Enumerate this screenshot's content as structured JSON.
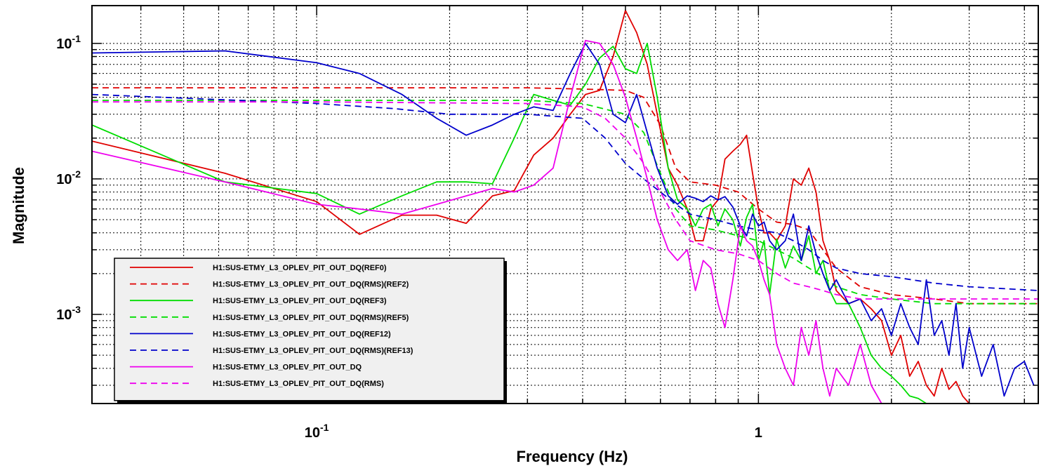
{
  "chart_data": {
    "type": "line",
    "xlabel": "Frequency (Hz)",
    "ylabel": "Magnitude",
    "x_scale": "log",
    "y_scale": "log",
    "xlim": [
      0.031,
      4.3
    ],
    "ylim": [
      0.00022,
      0.19
    ],
    "grid": true,
    "legend_position": "bottom-left",
    "x_ticks": [
      {
        "value": 0.1,
        "base": "10",
        "exp": "-1"
      },
      {
        "value": 1,
        "base": "1",
        "exp": ""
      }
    ],
    "y_ticks": [
      {
        "value": 0.1,
        "base": "10",
        "exp": "-1"
      },
      {
        "value": 0.01,
        "base": "10",
        "exp": "-2"
      },
      {
        "value": 0.001,
        "base": "10",
        "exp": "-3"
      }
    ],
    "series": [
      {
        "name": "H1:SUS-ETMY_L3_OPLEV_PIT_OUT_DQ(REF0)",
        "color": "#e00000",
        "dash": "solid",
        "x": [
          0.031,
          0.062,
          0.1,
          0.125,
          0.156,
          0.187,
          0.218,
          0.25,
          0.28,
          0.31,
          0.343,
          0.375,
          0.406,
          0.437,
          0.469,
          0.5,
          0.53,
          0.56,
          0.59,
          0.625,
          0.656,
          0.69,
          0.72,
          0.75,
          0.78,
          0.81,
          0.84,
          0.875,
          0.91,
          0.94,
          0.97,
          1.0,
          1.03,
          1.06,
          1.1,
          1.15,
          1.2,
          1.25,
          1.3,
          1.35,
          1.4,
          1.45,
          1.5,
          1.6,
          1.7,
          1.8,
          1.9,
          2.0,
          2.1,
          2.2,
          2.3,
          2.4,
          2.5,
          2.6,
          2.7,
          2.8,
          2.9,
          3.0
        ],
        "y": [
          0.019,
          0.011,
          0.0068,
          0.0039,
          0.0054,
          0.0054,
          0.0047,
          0.0075,
          0.0082,
          0.015,
          0.02,
          0.03,
          0.042,
          0.045,
          0.08,
          0.175,
          0.12,
          0.07,
          0.03,
          0.012,
          0.009,
          0.006,
          0.0035,
          0.0035,
          0.006,
          0.007,
          0.014,
          0.016,
          0.018,
          0.021,
          0.011,
          0.006,
          0.004,
          0.004,
          0.0035,
          0.0045,
          0.01,
          0.009,
          0.012,
          0.008,
          0.0035,
          0.0025,
          0.0015,
          0.0012,
          0.0013,
          0.0011,
          0.0009,
          0.0005,
          0.0007,
          0.00035,
          0.00045,
          0.0003,
          0.00025,
          0.0004,
          0.00028,
          0.00032,
          0.00025,
          0.00022
        ]
      },
      {
        "name": "H1:SUS-ETMY_L3_OPLEV_PIT_OUT_DQ(RMS)(REF2)",
        "color": "#e00000",
        "dash": "dashed",
        "x": [
          0.031,
          0.1,
          0.3,
          0.4,
          0.5,
          0.55,
          0.6,
          0.65,
          0.7,
          0.8,
          0.9,
          1.0,
          1.1,
          1.2,
          1.3,
          1.4,
          1.5,
          1.7,
          2.0,
          2.5,
          3.0,
          4.3
        ],
        "y": [
          0.047,
          0.047,
          0.047,
          0.046,
          0.045,
          0.04,
          0.025,
          0.012,
          0.0095,
          0.009,
          0.008,
          0.006,
          0.0048,
          0.0046,
          0.0042,
          0.003,
          0.0022,
          0.0016,
          0.0014,
          0.0013,
          0.0012,
          0.0012
        ]
      },
      {
        "name": "H1:SUS-ETMY_L3_OPLEV_PIT_OUT_DQ(REF3)",
        "color": "#00dd00",
        "dash": "solid",
        "x": [
          0.031,
          0.062,
          0.1,
          0.125,
          0.156,
          0.187,
          0.218,
          0.25,
          0.28,
          0.31,
          0.343,
          0.375,
          0.406,
          0.437,
          0.469,
          0.5,
          0.53,
          0.56,
          0.59,
          0.625,
          0.656,
          0.69,
          0.72,
          0.75,
          0.78,
          0.81,
          0.84,
          0.875,
          0.91,
          0.94,
          0.97,
          1.0,
          1.03,
          1.06,
          1.1,
          1.15,
          1.2,
          1.25,
          1.3,
          1.35,
          1.4,
          1.45,
          1.5,
          1.6,
          1.7,
          1.8,
          1.9,
          2.0,
          2.1,
          2.2,
          2.3,
          2.4,
          2.5,
          2.6
        ],
        "y": [
          0.025,
          0.0095,
          0.0078,
          0.0055,
          0.0075,
          0.0095,
          0.0095,
          0.0092,
          0.02,
          0.042,
          0.038,
          0.035,
          0.05,
          0.078,
          0.095,
          0.065,
          0.06,
          0.1,
          0.04,
          0.012,
          0.007,
          0.006,
          0.0045,
          0.006,
          0.0065,
          0.0045,
          0.006,
          0.005,
          0.0032,
          0.0052,
          0.0065,
          0.0025,
          0.0035,
          0.0014,
          0.0036,
          0.0022,
          0.0032,
          0.0025,
          0.0038,
          0.002,
          0.0025,
          0.0015,
          0.0012,
          0.0012,
          0.0008,
          0.0005,
          0.0004,
          0.00035,
          0.0003,
          0.00025,
          0.00024,
          0.00022,
          0.00022,
          0.00022
        ]
      },
      {
        "name": "H1:SUS-ETMY_L3_OPLEV_PIT_OUT_DQ(RMS)(REF5)",
        "color": "#00dd00",
        "dash": "dashed",
        "x": [
          0.031,
          0.1,
          0.3,
          0.4,
          0.5,
          0.55,
          0.6,
          0.65,
          0.7,
          0.8,
          0.9,
          1.0,
          1.1,
          1.2,
          1.3,
          1.4,
          1.5,
          1.7,
          2.0,
          2.5,
          3.0,
          4.3
        ],
        "y": [
          0.038,
          0.038,
          0.038,
          0.036,
          0.03,
          0.022,
          0.011,
          0.006,
          0.0045,
          0.0042,
          0.0038,
          0.0035,
          0.003,
          0.0026,
          0.0022,
          0.0019,
          0.0016,
          0.0014,
          0.0013,
          0.0012,
          0.0012,
          0.0012
        ]
      },
      {
        "name": "H1:SUS-ETMY_L3_OPLEV_PIT_OUT_DQ(REF12)",
        "color": "#0000cc",
        "dash": "solid",
        "x": [
          0.031,
          0.062,
          0.1,
          0.125,
          0.156,
          0.187,
          0.218,
          0.25,
          0.28,
          0.31,
          0.343,
          0.375,
          0.406,
          0.437,
          0.469,
          0.5,
          0.53,
          0.56,
          0.59,
          0.625,
          0.656,
          0.69,
          0.72,
          0.75,
          0.78,
          0.81,
          0.84,
          0.875,
          0.91,
          0.94,
          0.97,
          1.0,
          1.03,
          1.06,
          1.1,
          1.15,
          1.2,
          1.25,
          1.3,
          1.35,
          1.4,
          1.45,
          1.5,
          1.6,
          1.7,
          1.8,
          1.9,
          2.0,
          2.1,
          2.2,
          2.3,
          2.4,
          2.5,
          2.6,
          2.7,
          2.8,
          2.9,
          3.0,
          3.2,
          3.4,
          3.6,
          3.8,
          4.0,
          4.2
        ],
        "y": [
          0.085,
          0.088,
          0.072,
          0.06,
          0.042,
          0.028,
          0.021,
          0.025,
          0.03,
          0.034,
          0.032,
          0.06,
          0.1,
          0.07,
          0.03,
          0.026,
          0.042,
          0.022,
          0.012,
          0.0075,
          0.0065,
          0.0075,
          0.0072,
          0.0068,
          0.0075,
          0.007,
          0.0074,
          0.0062,
          0.0045,
          0.0038,
          0.0055,
          0.0045,
          0.0048,
          0.0035,
          0.003,
          0.0035,
          0.0055,
          0.0025,
          0.0045,
          0.0028,
          0.002,
          0.0015,
          0.0018,
          0.0012,
          0.0013,
          0.0009,
          0.0011,
          0.0007,
          0.0012,
          0.0008,
          0.0006,
          0.0018,
          0.0007,
          0.0009,
          0.0005,
          0.0012,
          0.0004,
          0.0008,
          0.00035,
          0.0006,
          0.00025,
          0.0004,
          0.00045,
          0.0003
        ]
      },
      {
        "name": "H1:SUS-ETMY_L3_OPLEV_PIT_OUT_DQ(RMS)(REF13)",
        "color": "#0000cc",
        "dash": "dashed",
        "x": [
          0.031,
          0.1,
          0.15,
          0.2,
          0.3,
          0.4,
          0.45,
          0.5,
          0.55,
          0.6,
          0.65,
          0.7,
          0.8,
          0.9,
          1.0,
          1.1,
          1.2,
          1.3,
          1.4,
          1.5,
          1.7,
          2.0,
          2.5,
          3.0,
          4.3
        ],
        "y": [
          0.042,
          0.036,
          0.033,
          0.03,
          0.03,
          0.028,
          0.02,
          0.013,
          0.01,
          0.008,
          0.0065,
          0.0055,
          0.005,
          0.0045,
          0.0042,
          0.004,
          0.0035,
          0.003,
          0.0025,
          0.0022,
          0.002,
          0.0019,
          0.0017,
          0.0016,
          0.0015
        ]
      },
      {
        "name": "H1:SUS-ETMY_L3_OPLEV_PIT_OUT_DQ",
        "color": "#ee00ee",
        "dash": "solid",
        "x": [
          0.031,
          0.062,
          0.1,
          0.125,
          0.156,
          0.187,
          0.218,
          0.25,
          0.28,
          0.31,
          0.343,
          0.375,
          0.406,
          0.437,
          0.469,
          0.5,
          0.53,
          0.56,
          0.59,
          0.625,
          0.656,
          0.69,
          0.72,
          0.75,
          0.78,
          0.81,
          0.84,
          0.875,
          0.91,
          0.94,
          0.97,
          1.0,
          1.03,
          1.06,
          1.1,
          1.15,
          1.2,
          1.25,
          1.3,
          1.35,
          1.4,
          1.45,
          1.5,
          1.6,
          1.7,
          1.8,
          1.9
        ],
        "y": [
          0.016,
          0.0095,
          0.0065,
          0.006,
          0.0055,
          0.0065,
          0.0075,
          0.0085,
          0.008,
          0.009,
          0.012,
          0.04,
          0.105,
          0.1,
          0.07,
          0.04,
          0.02,
          0.01,
          0.005,
          0.003,
          0.0025,
          0.003,
          0.0015,
          0.0025,
          0.0022,
          0.0012,
          0.0008,
          0.0018,
          0.0045,
          0.0035,
          0.0032,
          0.0025,
          0.0018,
          0.0014,
          0.0006,
          0.0004,
          0.0003,
          0.0008,
          0.0005,
          0.0009,
          0.0004,
          0.00025,
          0.0004,
          0.0003,
          0.0006,
          0.0003,
          0.00022
        ]
      },
      {
        "name": "H1:SUS-ETMY_L3_OPLEV_PIT_OUT_DQ(RMS)",
        "color": "#ee00ee",
        "dash": "dashed",
        "x": [
          0.031,
          0.1,
          0.3,
          0.4,
          0.45,
          0.5,
          0.55,
          0.6,
          0.65,
          0.7,
          0.8,
          0.9,
          1.0,
          1.1,
          1.2,
          1.3,
          1.4,
          1.5,
          1.7,
          2.0,
          2.5,
          3.0,
          4.3
        ],
        "y": [
          0.037,
          0.037,
          0.036,
          0.034,
          0.028,
          0.02,
          0.013,
          0.008,
          0.005,
          0.0035,
          0.003,
          0.0028,
          0.0025,
          0.002,
          0.0017,
          0.0016,
          0.0015,
          0.0014,
          0.0013,
          0.0013,
          0.0013,
          0.0013,
          0.0013
        ]
      }
    ]
  }
}
